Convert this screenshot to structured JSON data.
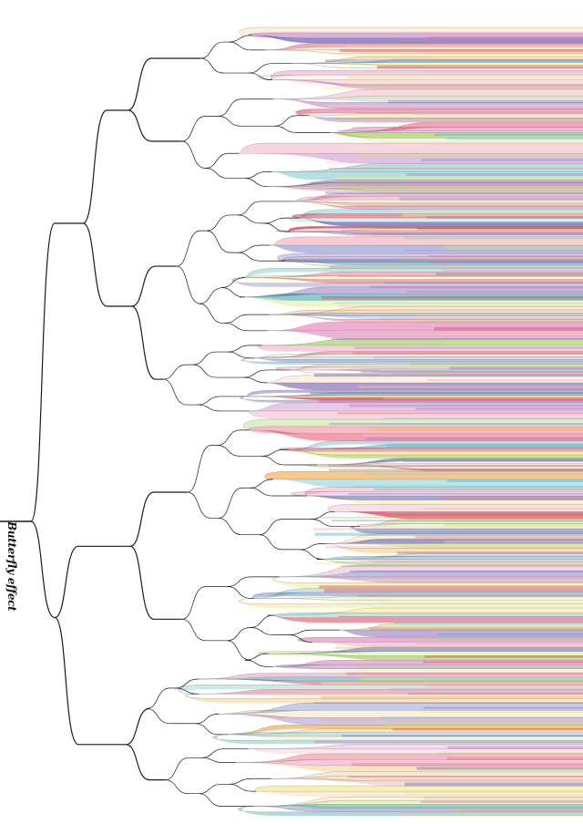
{
  "title": "Butterfly effect",
  "palette": [
    "#e5445a",
    "#f07a8e",
    "#f3b9cb",
    "#e998c8",
    "#c77ec2",
    "#9b7fc4",
    "#6d6fb8",
    "#7f8fd0",
    "#58b7c4",
    "#8fd3cf",
    "#a9d66e",
    "#d4e86a",
    "#f3ec8a",
    "#f7b35c",
    "#f9d9a8",
    "#efe7c7"
  ],
  "colors": {
    "background": "#ffffff",
    "line": "#1a1a1a",
    "band_outline": "#666666"
  }
}
